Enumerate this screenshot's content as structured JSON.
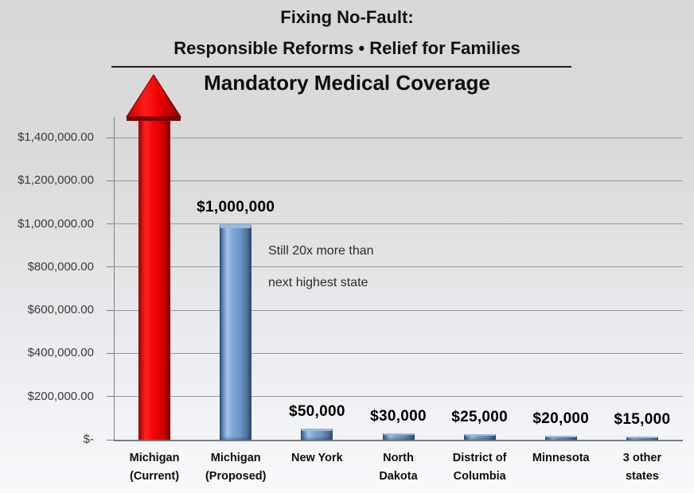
{
  "title": {
    "line1": "Fixing No-Fault:",
    "line2": "Responsible Reforms • Relief for Families"
  },
  "chart_data": {
    "type": "bar",
    "title": "Mandatory Medical Coverage",
    "categories": [
      "Michigan\n(Current)",
      "Michigan\n(Proposed)",
      "New York",
      "North\nDakota",
      "District of\nColumbia",
      "Minnesota",
      "3 other\nstates"
    ],
    "values": [
      "unlimited",
      1000000,
      50000,
      30000,
      25000,
      20000,
      15000
    ],
    "data_labels": [
      "",
      "$1,000,000",
      "$50,000",
      "$30,000",
      "$25,000",
      "$20,000",
      "$15,000"
    ],
    "y_tick_labels": [
      "$-",
      "$200,000.00",
      "$400,000.00",
      "$600,000.00",
      "$800,000.00",
      "$1,000,000.00",
      "$1,200,000.00",
      "$1,400,000.00"
    ],
    "ylim": [
      0,
      1400000
    ],
    "gridline_step": 200000,
    "grid": true,
    "legend": null,
    "annotation": "Still 20x more than\nnext highest state",
    "colors": {
      "michigan_current_arrow": "#ee0000",
      "bars": "#6f9acf",
      "gridline": "#96989b"
    }
  }
}
